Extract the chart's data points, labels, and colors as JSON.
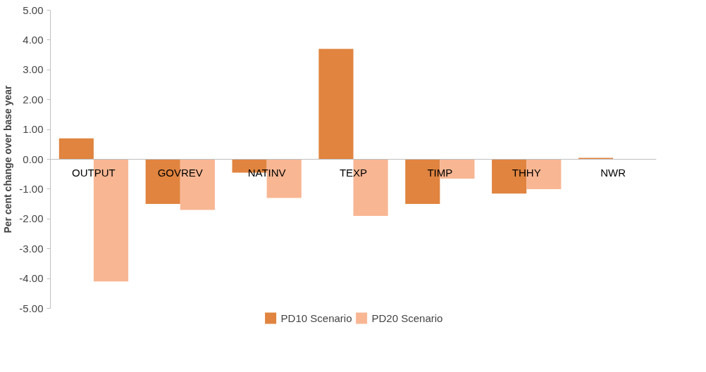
{
  "chart_data": {
    "type": "bar",
    "ylabel": "Per cent change over base year",
    "categories": [
      "OUTPUT",
      "GOVREV",
      "NATINV",
      "TEXP",
      "TIMP",
      "THHY",
      "NWR"
    ],
    "series": [
      {
        "name": "PD10 Scenario",
        "color": "#e0843f",
        "values": [
          0.7,
          -1.5,
          -0.45,
          3.7,
          -1.5,
          -1.15,
          0.05
        ]
      },
      {
        "name": "PD20 Scenario",
        "color": "#f8b693",
        "values": [
          -4.1,
          -1.7,
          -1.3,
          -1.9,
          -0.65,
          -1.0,
          0.0
        ]
      }
    ],
    "ylim": [
      -5,
      5
    ],
    "yticks": [
      {
        "value": -5,
        "label": "-5.00"
      },
      {
        "value": -4,
        "label": "-4.00"
      },
      {
        "value": -3,
        "label": "-3.00"
      },
      {
        "value": -2,
        "label": "-2.00"
      },
      {
        "value": -1,
        "label": "-1.00"
      },
      {
        "value": 0,
        "label": "0.00"
      },
      {
        "value": 1,
        "label": "1.00"
      },
      {
        "value": 2,
        "label": "2.00"
      },
      {
        "value": 3,
        "label": "3.00"
      },
      {
        "value": 4,
        "label": "4.00"
      },
      {
        "value": 5,
        "label": "5.00"
      }
    ],
    "grid": false,
    "legend": "bottom"
  }
}
